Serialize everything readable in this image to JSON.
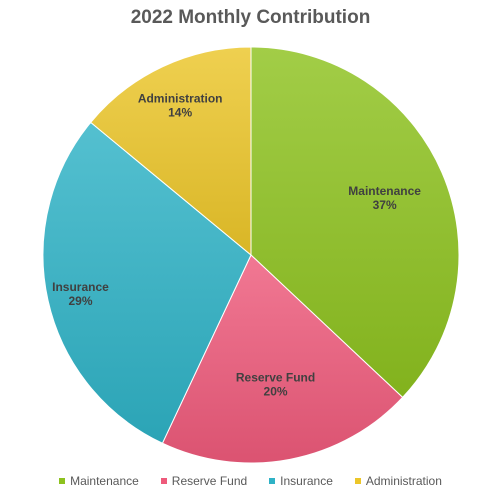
{
  "chart_data": {
    "type": "pie",
    "title": "2022 Monthly Contribution",
    "categories": [
      "Maintenance",
      "Reserve Fund",
      "Insurance",
      "Administration"
    ],
    "values": [
      37,
      20,
      29,
      14
    ],
    "labels": [
      "37%",
      "20%",
      "29%",
      "14%"
    ],
    "colors": [
      "#8dc21f",
      "#ee5a7b",
      "#2fb2c6",
      "#ecc629"
    ],
    "legend_position": "bottom",
    "start_angle": "12 o'clock",
    "direction": "clockwise"
  }
}
